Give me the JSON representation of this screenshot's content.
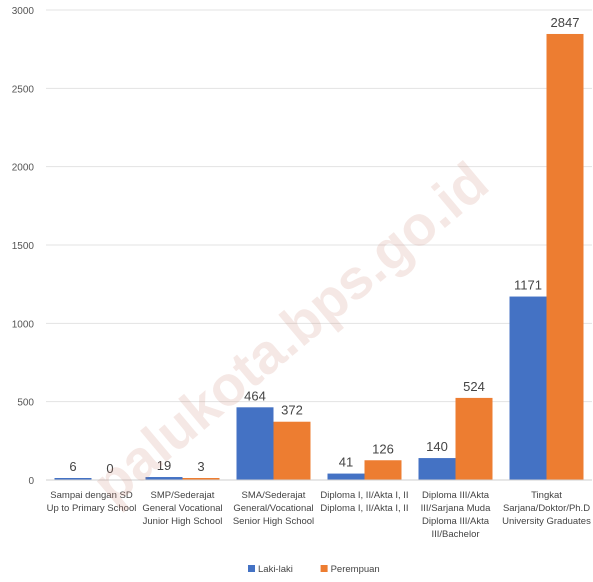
{
  "chart_data": {
    "type": "bar",
    "categories": [
      [
        "Sampai dengan SD",
        "Up to Primary School"
      ],
      [
        "SMP/Sederajat",
        "General Vocational",
        "Junior High School"
      ],
      [
        "SMA/Sederajat",
        "General/Vocational",
        "Senior High School"
      ],
      [
        "Diploma I, II/Akta I, II",
        "Diploma I, II/Akta I, II"
      ],
      [
        "Diploma III/Akta",
        "III/Sarjana Muda",
        "Diploma III/Akta",
        "III/Bachelor"
      ],
      [
        "Tingkat",
        "Sarjana/Doktor/Ph.D",
        "University Graduates"
      ]
    ],
    "series": [
      {
        "name": "Laki-laki",
        "values": [
          6,
          19,
          464,
          41,
          140,
          1171
        ],
        "color": "#4472C4"
      },
      {
        "name": "Perempuan",
        "values": [
          0,
          3,
          372,
          126,
          524,
          2847
        ],
        "color": "#ED7D31"
      }
    ],
    "yticks": [
      0,
      500,
      1000,
      1500,
      2000,
      2500,
      3000
    ],
    "ylim": [
      0,
      3000
    ],
    "grid": true,
    "legend_position": "bottom",
    "title": "",
    "xlabel": "",
    "ylabel": ""
  },
  "watermark": "palukota.bps.go.id",
  "colors": {
    "gridline": "#e3e3e3",
    "axis_text": "#444444"
  }
}
